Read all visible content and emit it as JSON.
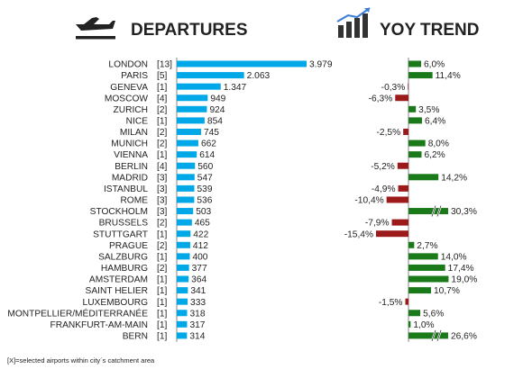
{
  "header": {
    "departures_title": "DEPARTURES",
    "trend_title": "YOY TREND",
    "departures_icon": "plane-takeoff-icon",
    "trend_icon": "bar-chart-trend-icon"
  },
  "footnote": "[X]=selected airports within city´s catchment area",
  "colors": {
    "departures_bar": "#00a8e8",
    "trend_positive": "#1a7a1a",
    "trend_negative": "#9c1a1a",
    "axis": "#666666"
  },
  "chart_data": [
    {
      "type": "bar",
      "orientation": "horizontal",
      "title": "DEPARTURES",
      "categories": [
        "LONDON",
        "PARIS",
        "GENEVA",
        "MOSCOW",
        "ZURICH",
        "NICE",
        "MILAN",
        "MUNICH",
        "VIENNA",
        "BERLIN",
        "MADRID",
        "ISTANBUL",
        "ROME",
        "STOCKHOLM",
        "BRUSSELS",
        "STUTTGART",
        "PRAGUE",
        "SALZBURG",
        "HAMBURG",
        "AMSTERDAM",
        "SAINT HELIER",
        "LUXEMBOURG",
        "MONTPELLIER/MÉDITERRANÉE",
        "FRANKFURT-AM-MAIN",
        "BERN"
      ],
      "airport_counts": [
        "[13]",
        "[5]",
        "[1]",
        "[4]",
        "[2]",
        "[1]",
        "[2]",
        "[2]",
        "[1]",
        "[4]",
        "[3]",
        "[3]",
        "[3]",
        "[3]",
        "[2]",
        "[1]",
        "[2]",
        "[1]",
        "[2]",
        "[1]",
        "[1]",
        "[1]",
        "[1]",
        "[1]",
        "[1]"
      ],
      "values": [
        3979,
        2063,
        1347,
        949,
        924,
        854,
        745,
        662,
        614,
        560,
        547,
        539,
        536,
        503,
        465,
        422,
        412,
        400,
        377,
        364,
        341,
        333,
        318,
        317,
        314
      ],
      "value_labels": [
        "3.979",
        "2.063",
        "1.347",
        "949",
        "924",
        "854",
        "745",
        "662",
        "614",
        "560",
        "547",
        "539",
        "536",
        "503",
        "465",
        "422",
        "412",
        "400",
        "377",
        "364",
        "341",
        "333",
        "318",
        "317",
        "314"
      ],
      "xlim": [
        0,
        3979
      ]
    },
    {
      "type": "bar",
      "orientation": "horizontal",
      "title": "YOY TREND",
      "categories": [
        "LONDON",
        "PARIS",
        "GENEVA",
        "MOSCOW",
        "ZURICH",
        "NICE",
        "MILAN",
        "MUNICH",
        "VIENNA",
        "BERLIN",
        "MADRID",
        "ISTANBUL",
        "ROME",
        "STOCKHOLM",
        "BRUSSELS",
        "STUTTGART",
        "PRAGUE",
        "SALZBURG",
        "HAMBURG",
        "AMSTERDAM",
        "SAINT HELIER",
        "LUXEMBOURG",
        "MONTPELLIER/MÉDITERRANÉE",
        "FRANKFURT-AM-MAIN",
        "BERN"
      ],
      "values": [
        6.0,
        11.4,
        -0.3,
        -6.3,
        3.5,
        6.4,
        -2.5,
        8.0,
        6.2,
        -5.2,
        14.2,
        -4.9,
        -10.4,
        30.3,
        -7.9,
        -15.4,
        2.7,
        14.0,
        17.4,
        19.0,
        10.7,
        -1.5,
        5.6,
        1.0,
        26.6
      ],
      "value_labels": [
        "6,0%",
        "11,4%",
        "-0,3%",
        "-6,3%",
        "3,5%",
        "6,4%",
        "-2,5%",
        "8,0%",
        "6,2%",
        "-5,2%",
        "14,2%",
        "-4,9%",
        "-10,4%",
        "30,3%",
        "-7,9%",
        "-15,4%",
        "2,7%",
        "14,0%",
        "17,4%",
        "19,0%",
        "10,7%",
        "-1,5%",
        "5,6%",
        "1,0%",
        "26,6%"
      ],
      "axis_break": [
        "STOCKHOLM",
        "BERN"
      ],
      "xlim": [
        -15.4,
        19.0
      ]
    }
  ]
}
